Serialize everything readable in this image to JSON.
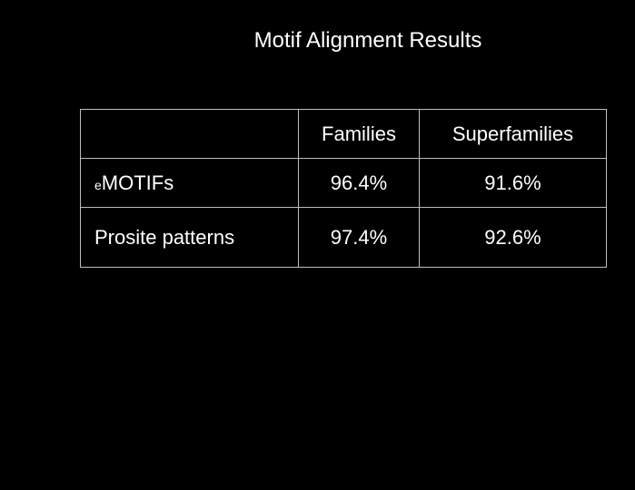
{
  "title": "Motif Alignment Results",
  "table": {
    "headers": [
      "",
      "Families",
      "Superfamilies"
    ],
    "rows": [
      {
        "label_prefix": "e",
        "label": "MOTIFs",
        "families": "96.4%",
        "superfamilies": "91.6%"
      },
      {
        "label_prefix": "",
        "label": "Prosite patterns",
        "families": "97.4%",
        "superfamilies": "92.6%"
      }
    ]
  }
}
